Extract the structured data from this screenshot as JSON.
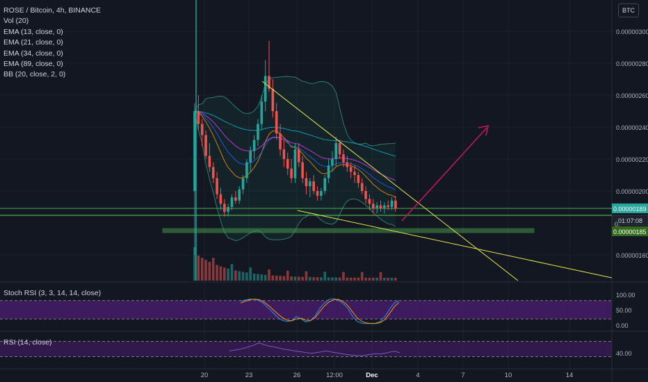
{
  "legend": {
    "symbol": "ROSE / Bitcoin, 4h, BINANCE",
    "indicators": [
      "Vol (20)",
      "EMA (13, close, 0)",
      "EMA (21, close, 0)",
      "EMA (34, close, 0)",
      "EMA (89, close, 0)",
      "BB (20, close, 2, 0)"
    ]
  },
  "currency_button": "BTC",
  "stoch_label": "Stoch RSI (3, 3, 14, 14, close)",
  "rsi_label": "RSI (14, close)",
  "colors": {
    "background": "#131722",
    "up": "#26a69a",
    "down": "#ef5350",
    "trendline": "#e8e84a",
    "zone": "#4caf50",
    "arrow": "#c2185b",
    "bb": "#2e7d6e",
    "stoch_band": "#4a1d6e"
  },
  "chart_data": [
    {
      "type": "candlestick",
      "price_labels": [
        "0.00000300",
        "0.00000280",
        "0.00000260",
        "0.00000240",
        "0.00000220",
        "0.00000200",
        "0.00000160"
      ],
      "ylim": [
        1.4e-06,
        3.1e-06
      ],
      "x_tick_labels": [
        "20",
        "23",
        "26",
        "12:00",
        "Dec",
        "4",
        "7",
        "10",
        "14"
      ],
      "last_price": "0.00000189",
      "countdown": "01:07:08",
      "marker_partial": "0.",
      "support_price": "0.00000185",
      "series": [
        {
          "name": "ROSE / Bitcoin",
          "ohlc": [
            [
              2.0,
              2.55,
              1.6,
              2.5
            ],
            [
              2.5,
              2.6,
              2.38,
              2.42
            ],
            [
              2.42,
              2.45,
              2.28,
              2.35
            ],
            [
              2.35,
              2.38,
              2.2,
              2.22
            ],
            [
              2.22,
              2.3,
              2.12,
              2.15
            ],
            [
              2.15,
              2.18,
              2.05,
              2.08
            ],
            [
              2.08,
              2.12,
              1.95,
              1.98
            ],
            [
              1.98,
              2.02,
              1.88,
              1.92
            ],
            [
              1.92,
              1.95,
              1.84,
              1.87
            ],
            [
              1.87,
              1.92,
              1.84,
              1.9
            ],
            [
              1.9,
              1.98,
              1.88,
              1.96
            ],
            [
              1.96,
              2.0,
              1.92,
              1.94
            ],
            [
              1.94,
              2.03,
              1.92,
              2.01
            ],
            [
              2.01,
              2.1,
              1.98,
              2.08
            ],
            [
              2.08,
              2.2,
              2.05,
              2.18
            ],
            [
              2.18,
              2.28,
              2.12,
              2.25
            ],
            [
              2.25,
              2.35,
              2.2,
              2.32
            ],
            [
              2.32,
              2.45,
              2.28,
              2.42
            ],
            [
              2.42,
              2.6,
              2.38,
              2.56
            ],
            [
              2.56,
              2.82,
              2.5,
              2.72
            ],
            [
              2.72,
              2.94,
              2.62,
              2.64
            ],
            [
              2.64,
              2.7,
              2.46,
              2.5
            ],
            [
              2.5,
              2.55,
              2.32,
              2.36
            ],
            [
              2.36,
              2.42,
              2.22,
              2.26
            ],
            [
              2.26,
              2.32,
              2.15,
              2.2
            ],
            [
              2.2,
              2.24,
              2.1,
              2.14
            ],
            [
              2.14,
              2.2,
              2.05,
              2.08
            ],
            [
              2.08,
              2.3,
              2.05,
              2.26
            ],
            [
              2.26,
              2.3,
              2.15,
              2.18
            ],
            [
              2.18,
              2.22,
              2.05,
              2.08
            ],
            [
              2.08,
              2.12,
              1.98,
              2.03
            ],
            [
              2.03,
              2.08,
              1.96,
              2.06
            ],
            [
              2.06,
              2.1,
              1.98,
              2.0
            ],
            [
              2.0,
              2.03,
              1.94,
              1.97
            ],
            [
              1.97,
              2.02,
              1.94,
              2.0
            ],
            [
              2.0,
              2.1,
              1.98,
              2.08
            ],
            [
              2.08,
              2.2,
              2.05,
              2.16
            ],
            [
              2.16,
              2.25,
              2.12,
              2.2
            ],
            [
              2.2,
              2.34,
              2.15,
              2.3
            ],
            [
              2.3,
              2.32,
              2.2,
              2.23
            ],
            [
              2.23,
              2.26,
              2.15,
              2.18
            ],
            [
              2.18,
              2.22,
              2.12,
              2.15
            ],
            [
              2.15,
              2.18,
              2.08,
              2.12
            ],
            [
              2.12,
              2.16,
              2.05,
              2.1
            ],
            [
              2.1,
              2.12,
              2.02,
              2.05
            ],
            [
              2.05,
              2.08,
              1.98,
              2.0
            ],
            [
              2.0,
              2.03,
              1.92,
              1.95
            ],
            [
              1.95,
              1.98,
              1.88,
              1.92
            ],
            [
              1.92,
              1.95,
              1.86,
              1.89
            ],
            [
              1.89,
              1.93,
              1.86,
              1.91
            ],
            [
              1.91,
              1.94,
              1.87,
              1.89
            ],
            [
              1.89,
              1.93,
              1.86,
              1.91
            ],
            [
              1.91,
              1.94,
              1.88,
              1.9
            ],
            [
              1.9,
              1.96,
              1.88,
              1.94
            ],
            [
              1.94,
              1.97,
              1.87,
              1.89
            ]
          ]
        }
      ]
    },
    {
      "type": "line",
      "title": "Stoch RSI (3, 3, 14, 14, close)",
      "y_tick_labels": [
        "100.00",
        "50.00",
        "0.00"
      ],
      "ylim": [
        0,
        100
      ],
      "series": [
        {
          "values": [
            78,
            82,
            85,
            84,
            80,
            70,
            55,
            40,
            25,
            15,
            12,
            14,
            28,
            20,
            10,
            14,
            30,
            55,
            72,
            84,
            86,
            82,
            70,
            55,
            30,
            12,
            6,
            5,
            5,
            6,
            12,
            28,
            52,
            72,
            80
          ]
        },
        {
          "values": [
            72,
            78,
            83,
            85,
            83,
            76,
            64,
            50,
            36,
            24,
            16,
            14,
            20,
            22,
            16,
            15,
            24,
            44,
            62,
            76,
            83,
            84,
            77,
            64,
            44,
            24,
            12,
            7,
            5,
            5,
            8,
            18,
            38,
            60,
            74
          ]
        }
      ]
    },
    {
      "type": "line",
      "title": "RSI (14, close)",
      "y_tick_labels": [
        "40.00"
      ],
      "ylim": [
        20,
        80
      ],
      "series": [
        {
          "values": [
            45,
            47,
            49,
            52,
            56,
            60,
            66,
            62,
            58,
            56,
            53,
            50,
            48,
            46,
            44,
            42,
            40,
            39,
            41,
            43,
            45,
            42,
            40,
            38,
            36,
            34,
            33,
            32,
            34,
            36,
            38,
            37,
            39,
            42,
            44,
            40
          ]
        }
      ]
    }
  ]
}
